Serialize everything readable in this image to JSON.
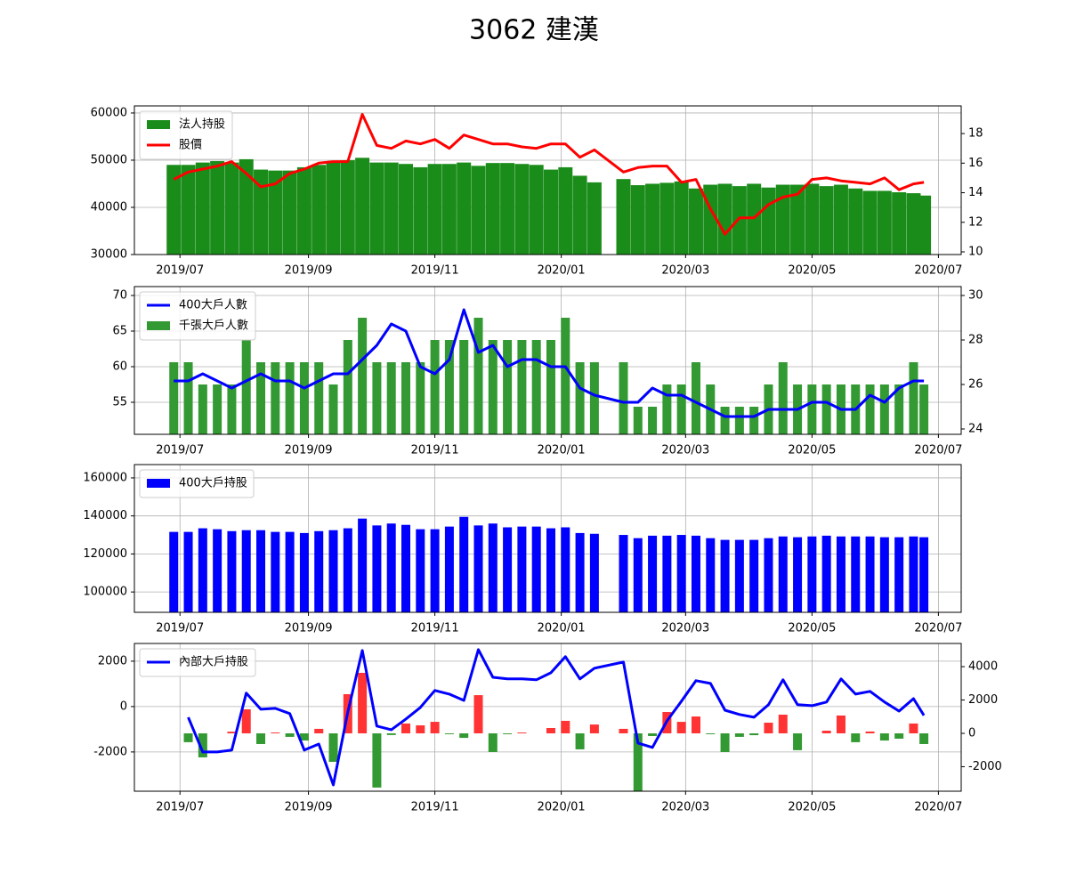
{
  "chart_data": [
    {
      "type": "combo",
      "x": [
        "2019-06-28",
        "2019-07-05",
        "2019-07-12",
        "2019-07-19",
        "2019-07-26",
        "2019-08-02",
        "2019-08-09",
        "2019-08-16",
        "2019-08-23",
        "2019-08-30",
        "2019-09-06",
        "2019-09-13",
        "2019-09-20",
        "2019-09-27",
        "2019-10-04",
        "2019-10-11",
        "2019-10-18",
        "2019-10-25",
        "2019-11-01",
        "2019-11-08",
        "2019-11-15",
        "2019-11-22",
        "2019-11-29",
        "2019-12-06",
        "2019-12-13",
        "2019-12-20",
        "2019-12-27",
        "2020-01-03",
        "2020-01-10",
        "2020-01-17",
        "2020-01-31",
        "2020-02-07",
        "2020-02-14",
        "2020-02-21",
        "2020-02-28",
        "2020-03-06",
        "2020-03-13",
        "2020-03-20",
        "2020-03-27",
        "2020-04-03",
        "2020-04-10",
        "2020-04-17",
        "2020-04-24",
        "2020-05-01",
        "2020-05-08",
        "2020-05-15",
        "2020-05-22",
        "2020-05-29",
        "2020-06-05",
        "2020-06-12",
        "2020-06-19",
        "2020-06-24"
      ],
      "xlim": [
        "2019-06-09",
        "2020-07-12"
      ],
      "xticks": [
        {
          "value": "2019-07-01",
          "label": "2019/07"
        },
        {
          "value": "2019-09-01",
          "label": "2019/09"
        },
        {
          "value": "2019-11-01",
          "label": "2019/11"
        },
        {
          "value": "2020-01-01",
          "label": "2020/01"
        },
        {
          "value": "2020-03-01",
          "label": "2020/03"
        },
        {
          "value": "2020-05-01",
          "label": "2020/05"
        },
        {
          "value": "2020-07-01",
          "label": "2020/07"
        }
      ],
      "ylim": [
        30000,
        61500
      ],
      "yticks": [
        30000,
        40000,
        50000,
        60000
      ],
      "y2lim": [
        9.82,
        19.87
      ],
      "y2ticks": [
        10,
        12,
        14,
        16,
        18
      ],
      "grid": true,
      "legend": "upper left",
      "series": [
        {
          "name": "法人持股",
          "type": "bar",
          "color": "#1a8c1a",
          "values": [
            49000,
            49000,
            49500,
            49800,
            49500,
            50200,
            48000,
            47800,
            47800,
            48500,
            49000,
            49500,
            50000,
            50500,
            49500,
            49500,
            49200,
            48500,
            49200,
            49200,
            49500,
            48800,
            49400,
            49400,
            49200,
            49000,
            48000,
            48500,
            46700,
            45300,
            46000,
            44700,
            45000,
            45200,
            45500,
            44000,
            44800,
            45000,
            44500,
            45000,
            44200,
            44800,
            44800,
            45000,
            44500,
            44800,
            44000,
            43500,
            43500,
            43200,
            43000,
            42500
          ]
        },
        {
          "name": "股價",
          "type": "line",
          "axis": "y2",
          "color": "#ff0000",
          "values": [
            14.9,
            15.4,
            15.6,
            15.8,
            16.1,
            15.3,
            14.4,
            14.6,
            15.3,
            15.6,
            16,
            16.1,
            16.1,
            19.3,
            17.2,
            17,
            17.5,
            17.3,
            17.6,
            17,
            17.9,
            17.6,
            17.3,
            17.3,
            17.1,
            17,
            17.3,
            17.3,
            16.4,
            16.9,
            15.4,
            15.7,
            15.8,
            15.8,
            14.7,
            14.9,
            12.9,
            11.2,
            12.3,
            12.3,
            13.2,
            13.7,
            13.9,
            14.9,
            15,
            14.8,
            14.7,
            14.6,
            15,
            14.2,
            14.6,
            14.7
          ]
        }
      ]
    },
    {
      "type": "combo",
      "x": [
        "2019-06-28",
        "2019-07-05",
        "2019-07-12",
        "2019-07-19",
        "2019-07-26",
        "2019-08-02",
        "2019-08-09",
        "2019-08-16",
        "2019-08-23",
        "2019-08-30",
        "2019-09-06",
        "2019-09-13",
        "2019-09-20",
        "2019-09-27",
        "2019-10-04",
        "2019-10-11",
        "2019-10-18",
        "2019-10-25",
        "2019-11-01",
        "2019-11-08",
        "2019-11-15",
        "2019-11-22",
        "2019-11-29",
        "2019-12-06",
        "2019-12-13",
        "2019-12-20",
        "2019-12-27",
        "2020-01-03",
        "2020-01-10",
        "2020-01-17",
        "2020-01-31",
        "2020-02-07",
        "2020-02-14",
        "2020-02-21",
        "2020-02-28",
        "2020-03-06",
        "2020-03-13",
        "2020-03-20",
        "2020-03-27",
        "2020-04-03",
        "2020-04-10",
        "2020-04-17",
        "2020-04-24",
        "2020-05-01",
        "2020-05-08",
        "2020-05-15",
        "2020-05-22",
        "2020-05-29",
        "2020-06-05",
        "2020-06-12",
        "2020-06-19",
        "2020-06-24"
      ],
      "xlim": [
        "2019-06-09",
        "2020-07-12"
      ],
      "xticks": [
        {
          "value": "2019-07-01",
          "label": "2019/07"
        },
        {
          "value": "2019-09-01",
          "label": "2019/09"
        },
        {
          "value": "2019-11-01",
          "label": "2019/11"
        },
        {
          "value": "2020-01-01",
          "label": "2020/01"
        },
        {
          "value": "2020-03-01",
          "label": "2020/03"
        },
        {
          "value": "2020-05-01",
          "label": "2020/05"
        },
        {
          "value": "2020-07-01",
          "label": "2020/07"
        }
      ],
      "ylim": [
        50.5,
        71.25
      ],
      "yticks": [
        55,
        60,
        65,
        70
      ],
      "y2lim": [
        23.76,
        30.4
      ],
      "y2ticks": [
        24,
        26,
        28,
        30
      ],
      "grid": true,
      "legend": "upper left",
      "series": [
        {
          "name": "400大戶人數",
          "type": "line",
          "color": "#0000ff",
          "values": [
            58,
            58,
            59,
            58,
            57,
            58,
            59,
            58,
            58,
            57,
            58,
            59,
            59,
            61,
            63,
            66,
            65,
            60,
            59,
            61,
            68,
            62,
            63,
            60,
            61,
            61,
            60,
            60,
            57,
            56,
            55,
            55,
            57,
            56,
            56,
            55,
            54,
            53,
            53,
            53,
            54,
            54,
            54,
            55,
            55,
            54,
            54,
            56,
            55,
            57,
            58,
            58
          ]
        },
        {
          "name": "千張大戶人數",
          "type": "bar",
          "axis": "y2",
          "color": "#339933",
          "values": [
            27,
            27,
            26,
            26,
            26,
            28,
            27,
            27,
            27,
            27,
            27,
            26,
            28,
            29,
            27,
            27,
            27,
            27,
            28,
            28,
            28,
            29,
            28,
            28,
            28,
            28,
            28,
            29,
            27,
            27,
            27,
            25,
            25,
            26,
            26,
            27,
            26,
            25,
            25,
            25,
            26,
            27,
            26,
            26,
            26,
            26,
            26,
            26,
            26,
            26,
            27,
            26
          ]
        }
      ]
    },
    {
      "type": "combo",
      "x": [
        "2019-06-28",
        "2019-07-05",
        "2019-07-12",
        "2019-07-19",
        "2019-07-26",
        "2019-08-02",
        "2019-08-09",
        "2019-08-16",
        "2019-08-23",
        "2019-08-30",
        "2019-09-06",
        "2019-09-13",
        "2019-09-20",
        "2019-09-27",
        "2019-10-04",
        "2019-10-11",
        "2019-10-18",
        "2019-10-25",
        "2019-11-01",
        "2019-11-08",
        "2019-11-15",
        "2019-11-22",
        "2019-11-29",
        "2019-12-06",
        "2019-12-13",
        "2019-12-20",
        "2019-12-27",
        "2020-01-03",
        "2020-01-10",
        "2020-01-17",
        "2020-01-31",
        "2020-02-07",
        "2020-02-14",
        "2020-02-21",
        "2020-02-28",
        "2020-03-06",
        "2020-03-13",
        "2020-03-20",
        "2020-03-27",
        "2020-04-03",
        "2020-04-10",
        "2020-04-17",
        "2020-04-24",
        "2020-05-01",
        "2020-05-08",
        "2020-05-15",
        "2020-05-22",
        "2020-05-29",
        "2020-06-05",
        "2020-06-12",
        "2020-06-19",
        "2020-06-24"
      ],
      "xlim": [
        "2019-06-09",
        "2020-07-12"
      ],
      "xticks": [
        {
          "value": "2019-07-01",
          "label": "2019/07"
        },
        {
          "value": "2019-09-01",
          "label": "2019/09"
        },
        {
          "value": "2019-11-01",
          "label": "2019/11"
        },
        {
          "value": "2020-01-01",
          "label": "2020/01"
        },
        {
          "value": "2020-03-01",
          "label": "2020/03"
        },
        {
          "value": "2020-05-01",
          "label": "2020/05"
        },
        {
          "value": "2020-07-01",
          "label": "2020/07"
        }
      ],
      "ylim": [
        89300,
        167000
      ],
      "yticks": [
        100000,
        120000,
        140000,
        160000
      ],
      "grid": true,
      "legend": "upper left",
      "series": [
        {
          "name": "400大戶持股",
          "type": "bar",
          "color": "#0000ff",
          "values": [
            131600,
            131600,
            133500,
            133000,
            132000,
            132500,
            132500,
            131600,
            131600,
            131000,
            132000,
            132500,
            133500,
            138600,
            135000,
            136000,
            135300,
            133000,
            133000,
            134400,
            139500,
            135000,
            136000,
            134000,
            134400,
            134400,
            133500,
            134000,
            131000,
            130600,
            130000,
            128300,
            129600,
            129600,
            130000,
            129600,
            128300,
            127400,
            127400,
            127400,
            128300,
            129200,
            128800,
            129200,
            129600,
            129200,
            129200,
            129200,
            128800,
            128800,
            129200,
            128800
          ]
        }
      ]
    },
    {
      "type": "combo",
      "x": [
        "2019-06-28",
        "2019-07-05",
        "2019-07-12",
        "2019-07-19",
        "2019-07-26",
        "2019-08-02",
        "2019-08-09",
        "2019-08-16",
        "2019-08-23",
        "2019-08-30",
        "2019-09-06",
        "2019-09-13",
        "2019-09-20",
        "2019-09-27",
        "2019-10-04",
        "2019-10-11",
        "2019-10-18",
        "2019-10-25",
        "2019-11-01",
        "2019-11-08",
        "2019-11-15",
        "2019-11-22",
        "2019-11-29",
        "2019-12-06",
        "2019-12-13",
        "2019-12-20",
        "2019-12-27",
        "2020-01-03",
        "2020-01-10",
        "2020-01-17",
        "2020-01-31",
        "2020-02-07",
        "2020-02-14",
        "2020-02-21",
        "2020-02-28",
        "2020-03-06",
        "2020-03-13",
        "2020-03-20",
        "2020-03-27",
        "2020-04-03",
        "2020-04-10",
        "2020-04-17",
        "2020-04-24",
        "2020-05-01",
        "2020-05-08",
        "2020-05-15",
        "2020-05-22",
        "2020-05-29",
        "2020-06-05",
        "2020-06-12",
        "2020-06-19",
        "2020-06-24"
      ],
      "xlim": [
        "2019-06-09",
        "2020-07-12"
      ],
      "xticks": [
        {
          "value": "2019-07-01",
          "label": "2019/07"
        },
        {
          "value": "2019-09-01",
          "label": "2019/09"
        },
        {
          "value": "2019-11-01",
          "label": "2019/11"
        },
        {
          "value": "2020-01-01",
          "label": "2020/01"
        },
        {
          "value": "2020-03-01",
          "label": "2020/03"
        },
        {
          "value": "2020-05-01",
          "label": "2020/05"
        },
        {
          "value": "2020-07-01",
          "label": "2020/07"
        }
      ],
      "ylim": [
        -3730,
        2780
      ],
      "yticks": [
        -2000,
        0,
        2000
      ],
      "y2lim": [
        -3470,
        5390
      ],
      "y2ticks": [
        -2000,
        0,
        2000,
        4000
      ],
      "grid": true,
      "legend": "upper left",
      "series": [
        {
          "name": "內部大戶持股",
          "type": "line",
          "color": "#0000ff",
          "values": [
            null,
            -470,
            -2000,
            -2000,
            -1920,
            590,
            -120,
            -80,
            -310,
            -1920,
            -1650,
            -3450,
            -240,
            2470,
            -860,
            -1020,
            -550,
            -40,
            710,
            550,
            270,
            2510,
            1290,
            1220,
            1220,
            1180,
            1490,
            2200,
            1220,
            1690,
            1960,
            -1610,
            -1800,
            -630,
            240,
            1140,
            1020,
            -160,
            -350,
            -470,
            80,
            1180,
            80,
            40,
            200,
            1220,
            550,
            670,
            200,
            -200,
            350,
            -390
          ]
        },
        {
          "type": "bar",
          "axis": "y2",
          "color": "#ff3333",
          "negative_color": "#339933",
          "values": [
            null,
            -530,
            -1440,
            0,
            100,
            1440,
            -640,
            50,
            -210,
            -430,
            270,
            -1710,
            2350,
            3630,
            -3250,
            -100,
            590,
            480,
            690,
            -50,
            -270,
            2290,
            -1120,
            -50,
            50,
            0,
            320,
            750,
            -960,
            530,
            270,
            -3600,
            -160,
            1280,
            690,
            1010,
            -50,
            -1120,
            -210,
            -110,
            640,
            1120,
            -1010,
            0,
            160,
            1070,
            -530,
            110,
            -430,
            -320,
            590,
            -640
          ]
        }
      ]
    }
  ],
  "title": "3062 建漢"
}
